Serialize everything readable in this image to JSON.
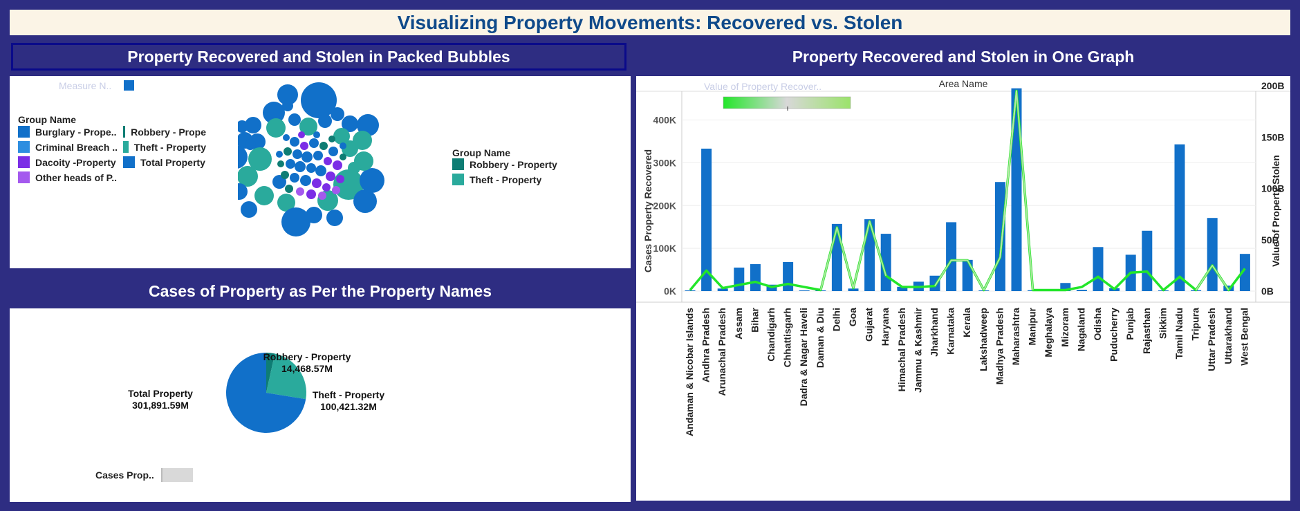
{
  "title": "Visualizing Property Movements: Recovered vs. Stolen",
  "colors": {
    "blue": "#1170c9",
    "teal": "#2aaa9c",
    "darkteal": "#0e7d74",
    "purple": "#7b2ee6",
    "lightpurple": "#a459ee",
    "midblue": "#2e8ee0",
    "green": "#23e62a",
    "lightgreen": "#9be36b"
  },
  "bubbles": {
    "header": "Property Recovered and Stolen in Packed Bubbles",
    "measure_legend": "Measure N..",
    "legend1": {
      "title": "Group Name",
      "items": [
        {
          "label": "Burglary - Prope..",
          "color": "#1170c9"
        },
        {
          "label": "Robbery - Prope",
          "color": "#0e7d74"
        },
        {
          "label": "Criminal Breach ..",
          "color": "#2e8ee0"
        },
        {
          "label": "Theft - Property",
          "color": "#2aaa9c"
        },
        {
          "label": "Dacoity -Property",
          "color": "#7b2ee6"
        },
        {
          "label": "Total Property",
          "color": "#1170c9"
        },
        {
          "label": "Other heads of P..",
          "color": "#a459ee"
        }
      ]
    },
    "legend2": {
      "title": "Group Name",
      "items": [
        {
          "label": "Robbery - Property",
          "color": "#0e7d74"
        },
        {
          "label": "Theft - Property",
          "color": "#2aaa9c"
        }
      ]
    }
  },
  "pie": {
    "header": "Cases of Property as Per the Property Names",
    "legend_label": "Cases Prop.."
  },
  "bar": {
    "header": "Property Recovered and Stolen in One Graph",
    "top_label": "Area Name",
    "color_legend_title": "Value of Property Recover..",
    "ylabel_left": "Cases Property Recovered",
    "ylabel_right": "Value of Property Stolen",
    "left_ticks": [
      "0K",
      "100K",
      "200K",
      "300K",
      "400K"
    ],
    "right_ticks": [
      "0B",
      "50B",
      "100B",
      "150B",
      "200B"
    ]
  },
  "chart_data": [
    {
      "type": "pie",
      "title": "Cases of Property as Per the Property Names",
      "slices": [
        {
          "name": "Total Property",
          "value": 301891.59,
          "label": "301,891.59M",
          "color": "#1170c9"
        },
        {
          "name": "Robbery - Property",
          "value": 14468.57,
          "label": "14,468.57M",
          "color": "#0e7d74"
        },
        {
          "name": "Theft - Property",
          "value": 100421.32,
          "label": "100,421.32M",
          "color": "#2aaa9c"
        }
      ]
    },
    {
      "type": "bar",
      "title": "Property Recovered and Stolen in One Graph",
      "xlabel": "Area Name",
      "categories": [
        "Andaman & Nicobar Islands",
        "Andhra Pradesh",
        "Arunachal Pradesh",
        "Assam",
        "Bihar",
        "Chandigarh",
        "Chhattisgarh",
        "Dadra & Nagar Haveli",
        "Daman & Diu",
        "Delhi",
        "Goa",
        "Gujarat",
        "Haryana",
        "Himachal Pradesh",
        "Jammu & Kashmir",
        "Jharkhand",
        "Karnataka",
        "Kerala",
        "Lakshadweep",
        "Madhya Pradesh",
        "Maharashtra",
        "Manipur",
        "Meghalaya",
        "Mizoram",
        "Nagaland",
        "Odisha",
        "Puducherry",
        "Punjab",
        "Rajasthan",
        "Sikkim",
        "Tamil Nadu",
        "Tripura",
        "Uttar Pradesh",
        "Uttarakhand",
        "West Bengal"
      ],
      "series": [
        {
          "name": "Cases Property Recovered",
          "axis": "left",
          "values": [
            1000,
            333000,
            6000,
            55000,
            63000,
            15000,
            68000,
            1000,
            500,
            157000,
            6000,
            168000,
            134000,
            10000,
            22000,
            36000,
            161000,
            73000,
            500,
            255000,
            474000,
            2000,
            3000,
            19000,
            3000,
            103000,
            7000,
            85000,
            141000,
            500,
            343000,
            2000,
            171000,
            13000,
            87000
          ]
        },
        {
          "name": "Value of Property Stolen",
          "axis": "right",
          "values": [
            1,
            20,
            3,
            6,
            9,
            4,
            7,
            4,
            1,
            62,
            3,
            68,
            15,
            4,
            4,
            5,
            30,
            30,
            1,
            33,
            195,
            1,
            1,
            1,
            4,
            14,
            2,
            18,
            19,
            1,
            14,
            1,
            25,
            1,
            22
          ]
        }
      ],
      "ylim_left": [
        0,
        480000
      ],
      "ylim_right": [
        0,
        200
      ],
      "ylabel": "Cases Property Recovered",
      "y2label": "Value of Property Stolen"
    }
  ]
}
